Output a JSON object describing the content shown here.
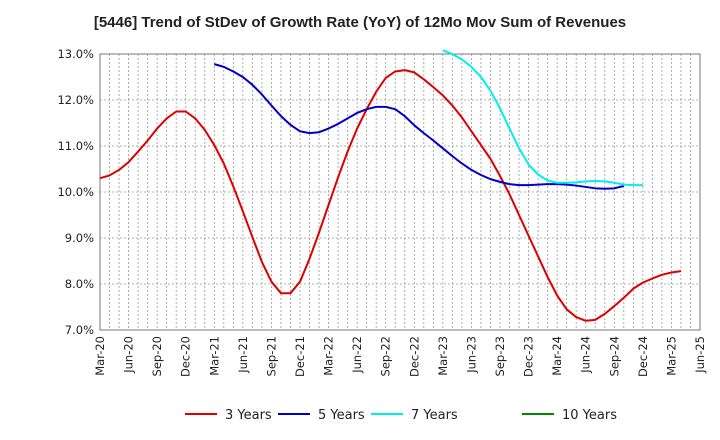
{
  "chart_data": {
    "type": "line",
    "title": "[5446]  Trend of StDev of Growth Rate (YoY) of 12Mo Mov Sum of Revenues",
    "xlabel": "",
    "ylabel": "",
    "ylim": [
      7.0,
      13.0
    ],
    "y_ticks": [
      "7.0%",
      "8.0%",
      "9.0%",
      "10.0%",
      "11.0%",
      "12.0%",
      "13.0%"
    ],
    "x_ticks": [
      "Mar-20",
      "Jun-20",
      "Sep-20",
      "Dec-20",
      "Mar-21",
      "Jun-21",
      "Sep-21",
      "Dec-21",
      "Mar-22",
      "Jun-22",
      "Sep-22",
      "Dec-22",
      "Mar-23",
      "Jun-23",
      "Sep-23",
      "Dec-23",
      "Mar-24",
      "Jun-24",
      "Sep-24",
      "Dec-24",
      "Mar-25",
      "Jun-25"
    ],
    "x_start": "Mar-20",
    "grid": true,
    "legend_position": "bottom",
    "series": [
      {
        "name": "3 Years",
        "color": "#dd0000",
        "start_index": 0,
        "values": [
          10.3,
          10.36,
          10.48,
          10.65,
          10.88,
          11.12,
          11.38,
          11.6,
          11.75,
          11.75,
          11.6,
          11.35,
          11.02,
          10.62,
          10.12,
          9.58,
          9.02,
          8.48,
          8.05,
          7.8,
          7.8,
          8.05,
          8.55,
          9.12,
          9.72,
          10.32,
          10.88,
          11.38,
          11.8,
          12.18,
          12.48,
          12.62,
          12.65,
          12.6,
          12.45,
          12.28,
          12.1,
          11.88,
          11.62,
          11.32,
          11.02,
          10.72,
          10.35,
          9.95,
          9.5,
          9.05,
          8.6,
          8.15,
          7.75,
          7.45,
          7.28,
          7.2,
          7.22,
          7.35,
          7.52,
          7.7,
          7.9,
          8.03,
          8.12,
          8.2,
          8.25,
          8.28
        ]
      },
      {
        "name": "5 Years",
        "color": "#0000cc",
        "start_index": 12,
        "values": [
          12.78,
          12.72,
          12.62,
          12.5,
          12.33,
          12.12,
          11.88,
          11.65,
          11.46,
          11.32,
          11.28,
          11.3,
          11.38,
          11.48,
          11.6,
          11.72,
          11.8,
          11.85,
          11.85,
          11.8,
          11.65,
          11.45,
          11.28,
          11.12,
          10.95,
          10.78,
          10.62,
          10.48,
          10.37,
          10.28,
          10.22,
          10.17,
          10.15,
          10.15,
          10.16,
          10.17,
          10.17,
          10.16,
          10.14,
          10.11,
          10.08,
          10.07,
          10.08,
          10.13
        ]
      },
      {
        "name": "7 Years",
        "color": "#00eeee",
        "start_index": 36,
        "values": [
          13.08,
          13.0,
          12.88,
          12.72,
          12.5,
          12.2,
          11.82,
          11.38,
          10.95,
          10.6,
          10.38,
          10.25,
          10.2,
          10.2,
          10.21,
          10.23,
          10.24,
          10.23,
          10.2,
          10.16,
          10.15,
          10.15
        ]
      },
      {
        "name": "10 Years",
        "color": "#008800",
        "start_index": 0,
        "values": []
      }
    ]
  }
}
